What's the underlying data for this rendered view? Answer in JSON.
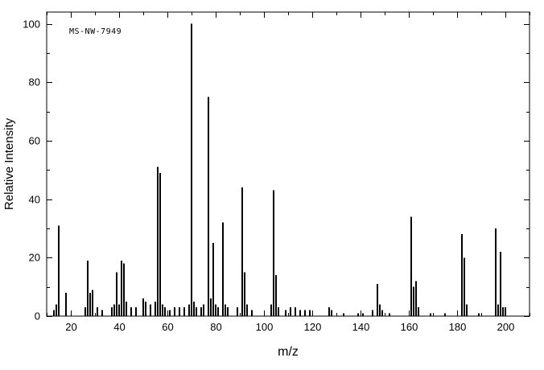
{
  "window": {
    "background_color": "#ffffff"
  },
  "chart_data": {
    "type": "bar",
    "chart_kind": "mass-spectrum",
    "spectrum_id": "MS-NW-7949",
    "title": "",
    "xlabel": "m/z",
    "ylabel": "Relative Intensity",
    "xlim": [
      10,
      210
    ],
    "ylim": [
      0,
      104
    ],
    "x_major_ticks": [
      20,
      40,
      60,
      80,
      100,
      120,
      140,
      160,
      180,
      200
    ],
    "x_minor_step": 10,
    "y_major_ticks": [
      0,
      20,
      40,
      60,
      80,
      100
    ],
    "y_minor_step": 10,
    "grid": false,
    "legend": "none",
    "axis_color": "#000000",
    "bar_color": "#000000",
    "peaks": [
      [
        13,
        2
      ],
      [
        14,
        4
      ],
      [
        15,
        31
      ],
      [
        18,
        8
      ],
      [
        26,
        3
      ],
      [
        27,
        19
      ],
      [
        28,
        8
      ],
      [
        29,
        9
      ],
      [
        31,
        3
      ],
      [
        33,
        2
      ],
      [
        37,
        3
      ],
      [
        38,
        4
      ],
      [
        39,
        15
      ],
      [
        40,
        4
      ],
      [
        41,
        19
      ],
      [
        42,
        18
      ],
      [
        43,
        5
      ],
      [
        45,
        3
      ],
      [
        47,
        3
      ],
      [
        50,
        6
      ],
      [
        51,
        5
      ],
      [
        53,
        4
      ],
      [
        55,
        5
      ],
      [
        56,
        51
      ],
      [
        57,
        49
      ],
      [
        58,
        4
      ],
      [
        59,
        3
      ],
      [
        61,
        2
      ],
      [
        63,
        3
      ],
      [
        65,
        3
      ],
      [
        67,
        3
      ],
      [
        69,
        4
      ],
      [
        70,
        100
      ],
      [
        71,
        5
      ],
      [
        72,
        3
      ],
      [
        74,
        3
      ],
      [
        75,
        4
      ],
      [
        77,
        75
      ],
      [
        78,
        6
      ],
      [
        79,
        25
      ],
      [
        80,
        4
      ],
      [
        81,
        3
      ],
      [
        83,
        32
      ],
      [
        84,
        4
      ],
      [
        85,
        3
      ],
      [
        89,
        3
      ],
      [
        91,
        44
      ],
      [
        92,
        15
      ],
      [
        93,
        4
      ],
      [
        95,
        2
      ],
      [
        103,
        4
      ],
      [
        104,
        43
      ],
      [
        105,
        14
      ],
      [
        106,
        3
      ],
      [
        109,
        2
      ],
      [
        111,
        3
      ],
      [
        113,
        3
      ],
      [
        115,
        2
      ],
      [
        117,
        2
      ],
      [
        119,
        2
      ],
      [
        127,
        3
      ],
      [
        128,
        2
      ],
      [
        133,
        1
      ],
      [
        139,
        1
      ],
      [
        141,
        1
      ],
      [
        145,
        2
      ],
      [
        147,
        11
      ],
      [
        148,
        4
      ],
      [
        149,
        2
      ],
      [
        152,
        1
      ],
      [
        161,
        34
      ],
      [
        162,
        10
      ],
      [
        163,
        12
      ],
      [
        164,
        3
      ],
      [
        169,
        1
      ],
      [
        175,
        1
      ],
      [
        182,
        28
      ],
      [
        183,
        20
      ],
      [
        184,
        4
      ],
      [
        189,
        1
      ],
      [
        196,
        30
      ],
      [
        197,
        4
      ],
      [
        198,
        22
      ],
      [
        199,
        3
      ],
      [
        200,
        3
      ]
    ]
  }
}
